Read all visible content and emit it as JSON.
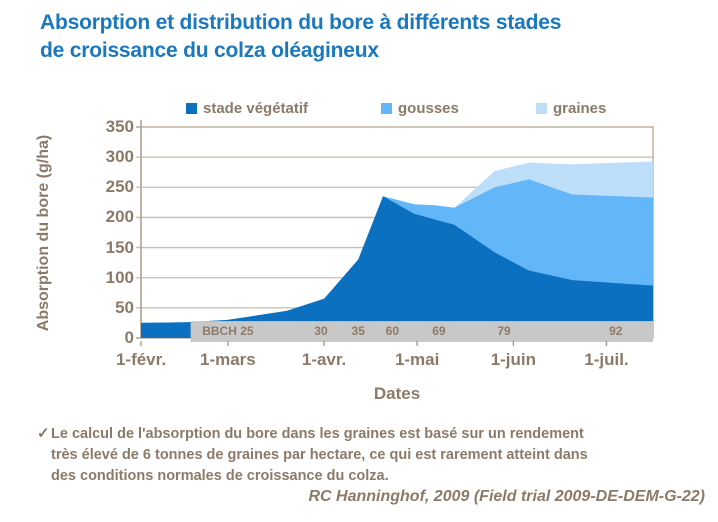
{
  "title": {
    "lines": [
      "Absorption et distribution du bore à différents stades",
      "de croissance du colza oléagineux"
    ],
    "color": "#1A78BE"
  },
  "legend": {
    "items": [
      {
        "label": "stade végétatif",
        "color": "#0B70C0"
      },
      {
        "label": "gousses",
        "color": "#63B6F8"
      },
      {
        "label": "graines",
        "color": "#BDDEF9"
      }
    ]
  },
  "chart_data": {
    "type": "area",
    "stacked": true,
    "title": "Absorption et distribution du bore à différents stades de croissance du colza oléagineux",
    "xlabel": "Dates",
    "ylabel": "Absorption du bore (g/ha)",
    "ylim": [
      0,
      350
    ],
    "yticks": [
      0,
      50,
      100,
      150,
      200,
      250,
      300,
      350
    ],
    "grid": "on",
    "legend_position": "top",
    "axis_text_color": "#8C7A69",
    "grid_color": "#C6BCB0",
    "frame_color": "#B3A795",
    "tick_color": "#A59783",
    "x_axis": {
      "unit": "days-from-1-feb",
      "max_day": 165,
      "month_ticks": [
        {
          "day": 0,
          "label": "1-févr."
        },
        {
          "day": 28,
          "label": "1-mars"
        },
        {
          "day": 59,
          "label": "1-avr."
        },
        {
          "day": 89,
          "label": "1-mai"
        },
        {
          "day": 120,
          "label": "1-juin"
        },
        {
          "day": 150,
          "label": "1-juil."
        }
      ]
    },
    "x_days": [
      0,
      15,
      28,
      47,
      59,
      70,
      78,
      88,
      95,
      101,
      114,
      125,
      139,
      165
    ],
    "series": [
      {
        "name": "stade végétatif",
        "color": "#0B70C0",
        "values": [
          25,
          26,
          30,
          45,
          65,
          130,
          235,
          206,
          196,
          188,
          142,
          112,
          96,
          87
        ]
      },
      {
        "name": "gousses",
        "color": "#63B6F8",
        "values": [
          0,
          0,
          0,
          0,
          0,
          0,
          0,
          16,
          24,
          28,
          108,
          151,
          142,
          146
        ]
      },
      {
        "name": "graines",
        "color": "#BDDEF9",
        "values": [
          0,
          0,
          0,
          0,
          0,
          0,
          0,
          0,
          0,
          0,
          27,
          28,
          50,
          60
        ]
      }
    ],
    "bbch_band": {
      "start_day": 16,
      "top_value": 28,
      "color": "#C8C8C8",
      "text_color": "#8C7A69",
      "labels": [
        {
          "day": 28,
          "text": "BBCH 25"
        },
        {
          "day": 58,
          "text": "30"
        },
        {
          "day": 70,
          "text": "35"
        },
        {
          "day": 81,
          "text": "60"
        },
        {
          "day": 96,
          "text": "69"
        },
        {
          "day": 117,
          "text": "79"
        },
        {
          "day": 153,
          "text": "92"
        }
      ]
    }
  },
  "footer": {
    "checkmark": "✓",
    "note_lines": [
      "Le calcul de l'absorption du bore dans les graines est basé sur un rendement",
      "très élevé de 6 tonnes de graines par hectare, ce qui est rarement atteint dans",
      "des conditions normales de croissance du colza."
    ],
    "citation": "RC Hanninghof, 2009 (Field trial 2009-DE-DEM-G-22)"
  }
}
